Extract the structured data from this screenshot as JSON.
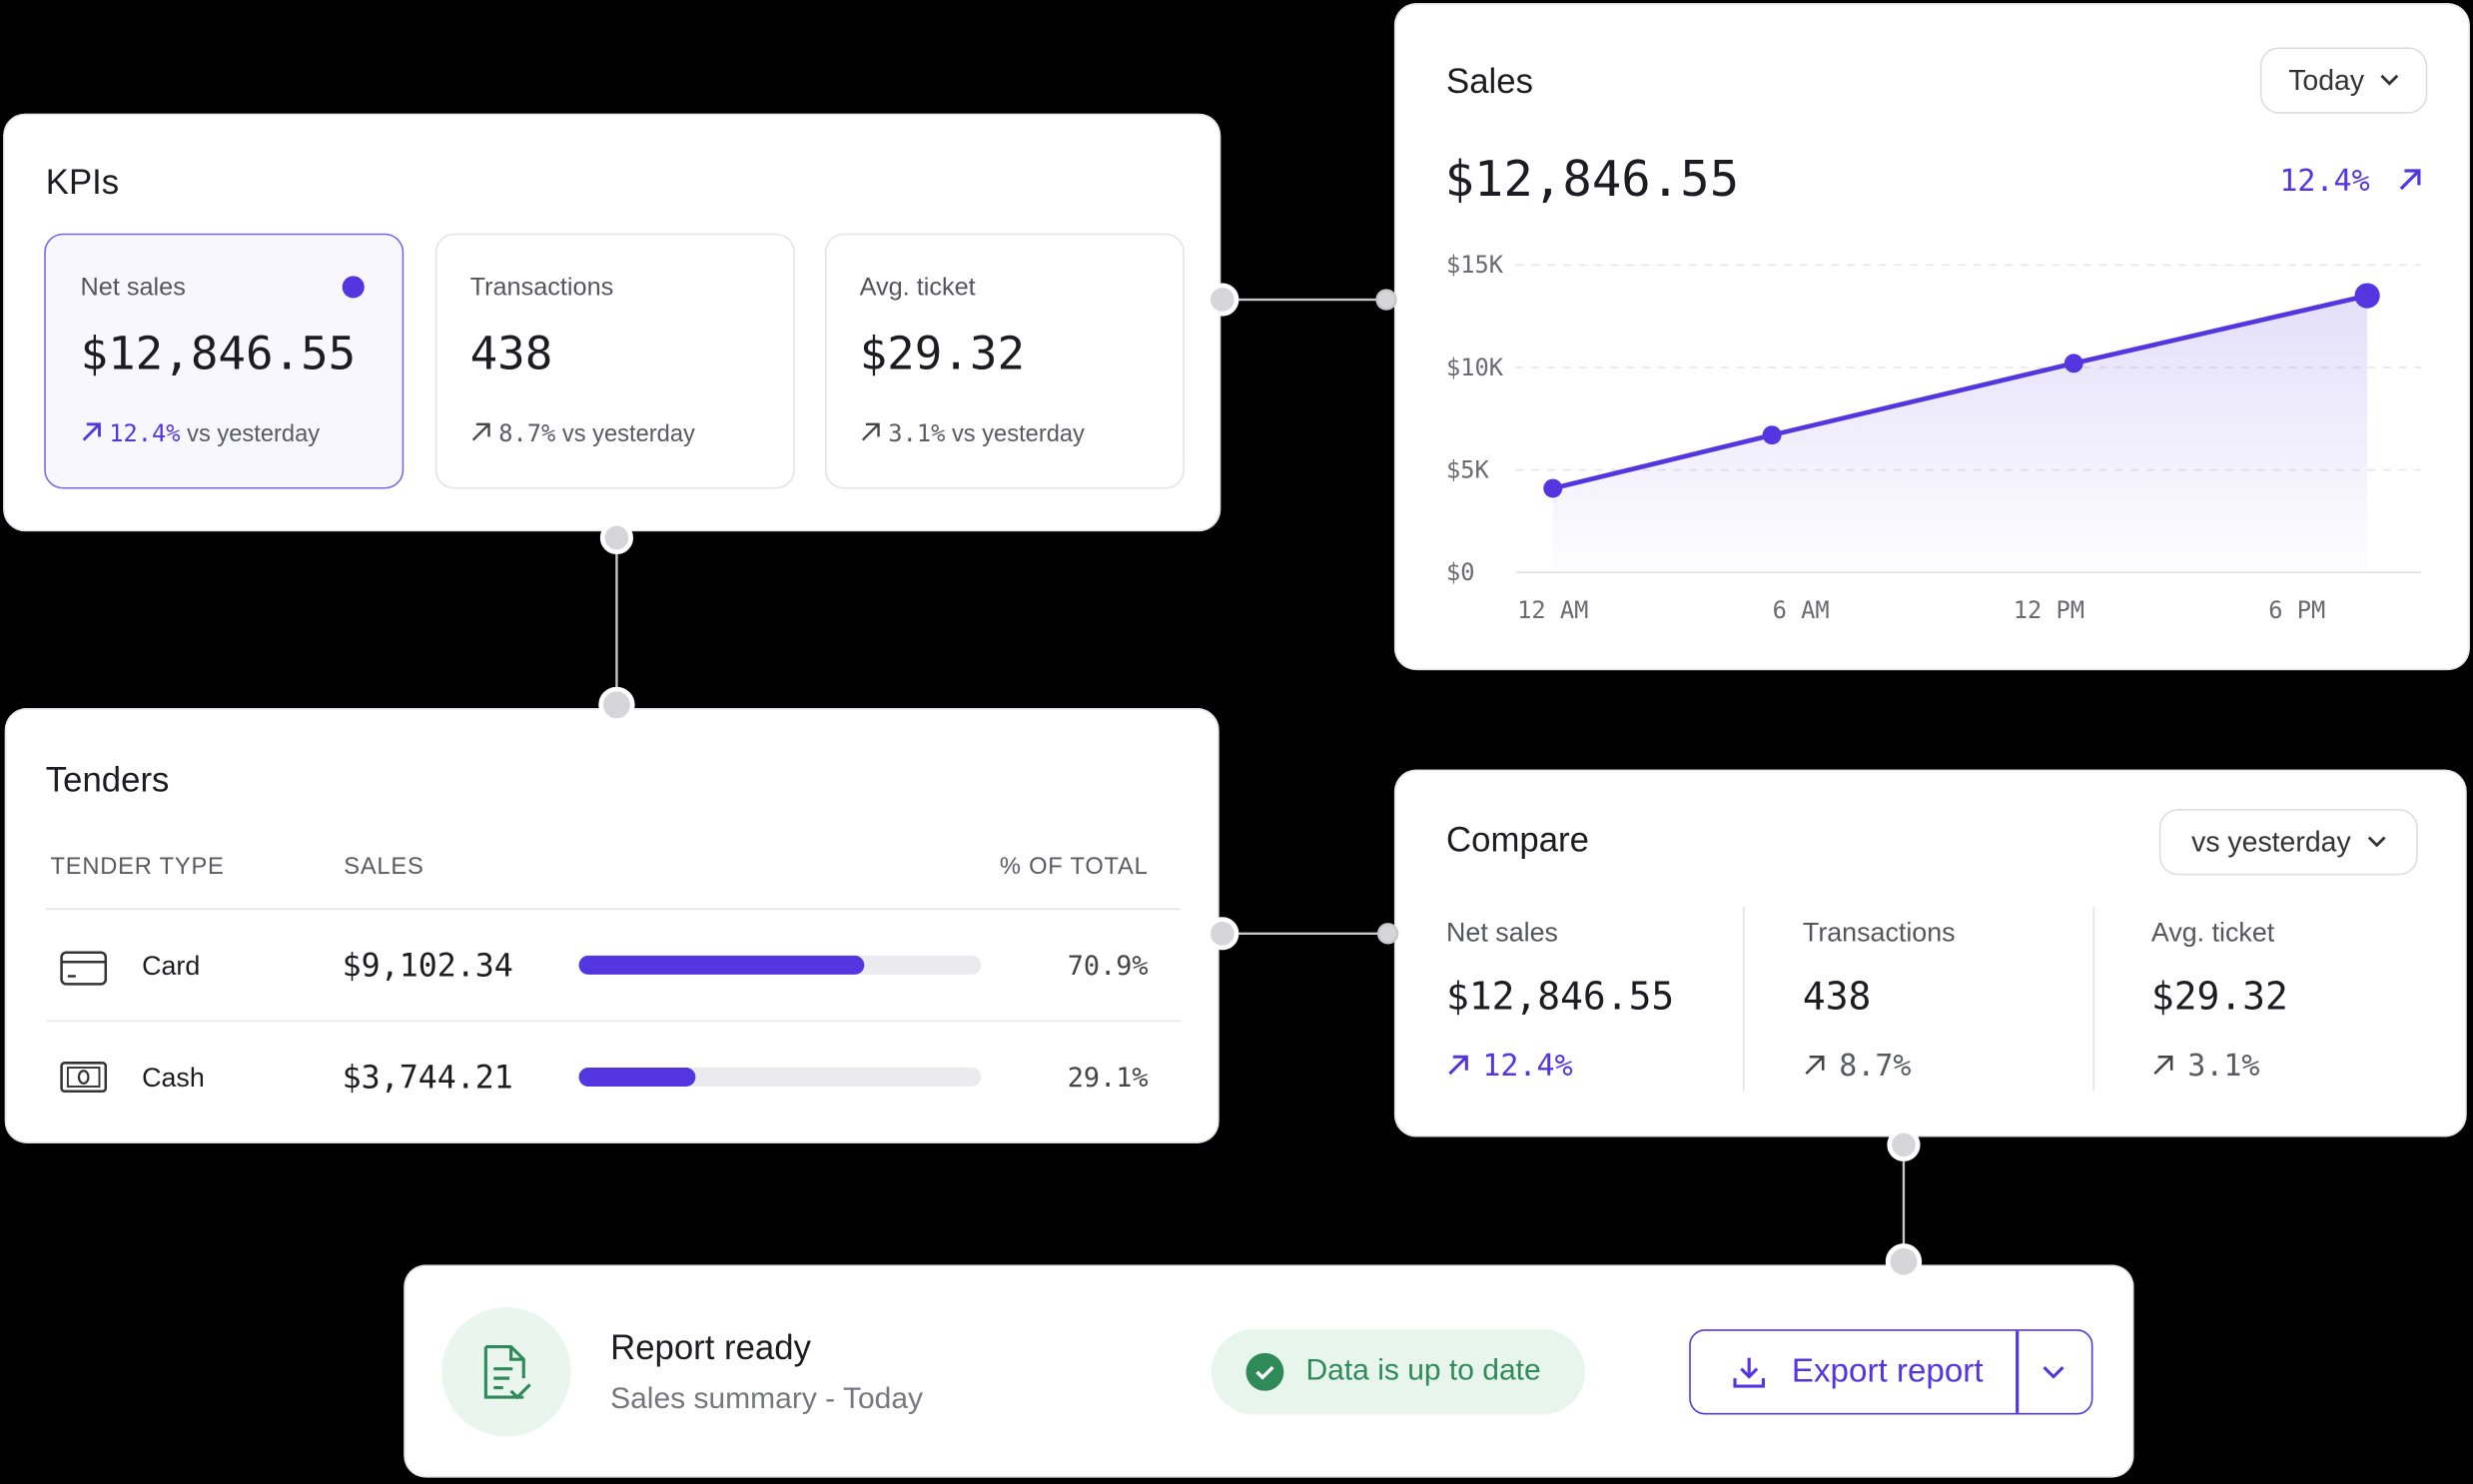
{
  "kpis": {
    "title": "KPIs",
    "cards": [
      {
        "label": "Net sales",
        "value": "$12,846.55",
        "change": "12.4%",
        "note": "vs yesterday"
      },
      {
        "label": "Transactions",
        "value": "438",
        "change": "8.7%",
        "note": "vs yesterday"
      },
      {
        "label": "Avg. ticket",
        "value": "$29.32",
        "change": "3.1%",
        "note": "vs yesterday"
      }
    ]
  },
  "chart_data": {
    "type": "line",
    "title": "Sales",
    "filter": "Today",
    "total": "$12,846.55",
    "change": "12.4%",
    "x": [
      0,
      5.3,
      12.6,
      19.7
    ],
    "xlim": [
      -0.9,
      21
    ],
    "xticks": [
      {
        "value": 0,
        "label": "12 AM"
      },
      {
        "value": 6,
        "label": "6 AM"
      },
      {
        "value": 12,
        "label": "12 PM"
      },
      {
        "value": 18,
        "label": "6 PM"
      }
    ],
    "ylim": [
      0,
      15000
    ],
    "yticks": [
      {
        "value": 0,
        "label": "$0"
      },
      {
        "value": 5000,
        "label": "$5K"
      },
      {
        "value": 10000,
        "label": "$10K"
      },
      {
        "value": 15000,
        "label": "$15K"
      }
    ],
    "grid": true,
    "series": [
      {
        "color": "#5436e0",
        "values": [
          4100,
          6700,
          10200,
          13500
        ]
      }
    ]
  },
  "tenders": {
    "title": "Tenders",
    "columns": [
      "TENDER TYPE",
      "SALES",
      "% OF TOTAL"
    ],
    "rows": [
      {
        "type": "Card",
        "sales": "$9,102.34",
        "share": {
          "value": 70.9,
          "label": "70.9%"
        }
      },
      {
        "type": "Cash",
        "sales": "$3,744.21",
        "share": {
          "value": 29.1,
          "label": "29.1%"
        }
      }
    ]
  },
  "compare": {
    "title": "Compare",
    "filter": "vs yesterday",
    "metrics": [
      {
        "label": "Net sales",
        "value": "$12,846.55",
        "change": "12.4%"
      },
      {
        "label": "Transactions",
        "value": "438",
        "change": "8.7%"
      },
      {
        "label": "Avg. ticket",
        "value": "$29.32",
        "change": "3.1%"
      }
    ]
  },
  "report": {
    "title": "Report ready",
    "subtitle": "Sales summary - Today",
    "status": "Data is up to date",
    "action": "Export report"
  }
}
